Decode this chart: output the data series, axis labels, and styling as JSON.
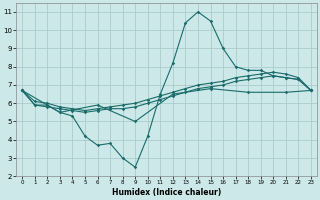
{
  "xlabel": "Humidex (Indice chaleur)",
  "xlim": [
    -0.5,
    23.5
  ],
  "ylim": [
    2,
    11.5
  ],
  "xticks": [
    0,
    1,
    2,
    3,
    4,
    5,
    6,
    7,
    8,
    9,
    10,
    11,
    12,
    13,
    14,
    15,
    16,
    17,
    18,
    19,
    20,
    21,
    22,
    23
  ],
  "yticks": [
    2,
    3,
    4,
    5,
    6,
    7,
    8,
    9,
    10,
    11
  ],
  "bg_color": "#cce8e8",
  "line_color": "#1a6b6b",
  "grid_color": "#aacccc",
  "line1_x": [
    0,
    1,
    2,
    3,
    4,
    5,
    6,
    7,
    8,
    9,
    10,
    11,
    12,
    13,
    14,
    15,
    16,
    17,
    18,
    19,
    20,
    21,
    22,
    23
  ],
  "line1_y": [
    6.7,
    5.9,
    5.9,
    5.5,
    5.3,
    4.2,
    3.7,
    3.8,
    3.0,
    2.5,
    4.2,
    6.5,
    8.2,
    10.4,
    11.0,
    10.5,
    9.0,
    8.0,
    7.8,
    7.8,
    7.5,
    7.4,
    7.3,
    6.7
  ],
  "line2_x": [
    0,
    1,
    2,
    3,
    4,
    5,
    6,
    7,
    8,
    9,
    10,
    11,
    12,
    13,
    14,
    15,
    16,
    17,
    18,
    19,
    20,
    21,
    22,
    23
  ],
  "line2_y": [
    6.7,
    6.1,
    6.0,
    5.8,
    5.7,
    5.6,
    5.7,
    5.8,
    5.9,
    6.0,
    6.2,
    6.4,
    6.6,
    6.8,
    7.0,
    7.1,
    7.2,
    7.4,
    7.5,
    7.6,
    7.7,
    7.6,
    7.4,
    6.7
  ],
  "line3_x": [
    0,
    1,
    2,
    3,
    4,
    5,
    6,
    7,
    8,
    9,
    10,
    11,
    12,
    13,
    14,
    15,
    16,
    17,
    18,
    19,
    20,
    21,
    22,
    23
  ],
  "line3_y": [
    6.7,
    5.9,
    5.8,
    5.7,
    5.6,
    5.5,
    5.6,
    5.7,
    5.7,
    5.8,
    6.0,
    6.2,
    6.4,
    6.6,
    6.8,
    6.9,
    7.0,
    7.2,
    7.3,
    7.4,
    7.5,
    7.4,
    7.3,
    6.7
  ],
  "line4_x": [
    0,
    3,
    6,
    9,
    12,
    15,
    18,
    21,
    23
  ],
  "line4_y": [
    6.7,
    5.5,
    5.9,
    5.0,
    6.5,
    6.8,
    6.6,
    6.6,
    6.7
  ]
}
